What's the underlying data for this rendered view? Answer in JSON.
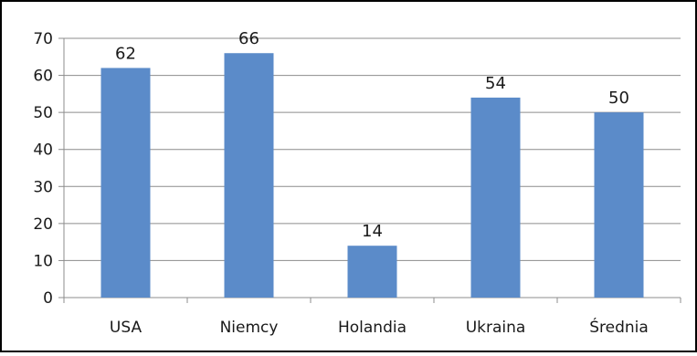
{
  "chart_data": {
    "type": "bar",
    "categories": [
      "USA",
      "Niemcy",
      "Holandia",
      "Ukraina",
      "Średnia"
    ],
    "values": [
      62,
      66,
      14,
      54,
      50
    ],
    "data_labels": [
      "62",
      "66",
      "14",
      "54",
      "50"
    ],
    "title": "",
    "xlabel": "",
    "ylabel": "",
    "ylim": [
      0,
      70
    ],
    "yticks": [
      0,
      10,
      20,
      30,
      40,
      50,
      60,
      70
    ],
    "grid": true,
    "legend": "none",
    "bar_color": "#5b8bc9",
    "grid_color": "#8c8c8c",
    "frame_color": "#000000"
  }
}
